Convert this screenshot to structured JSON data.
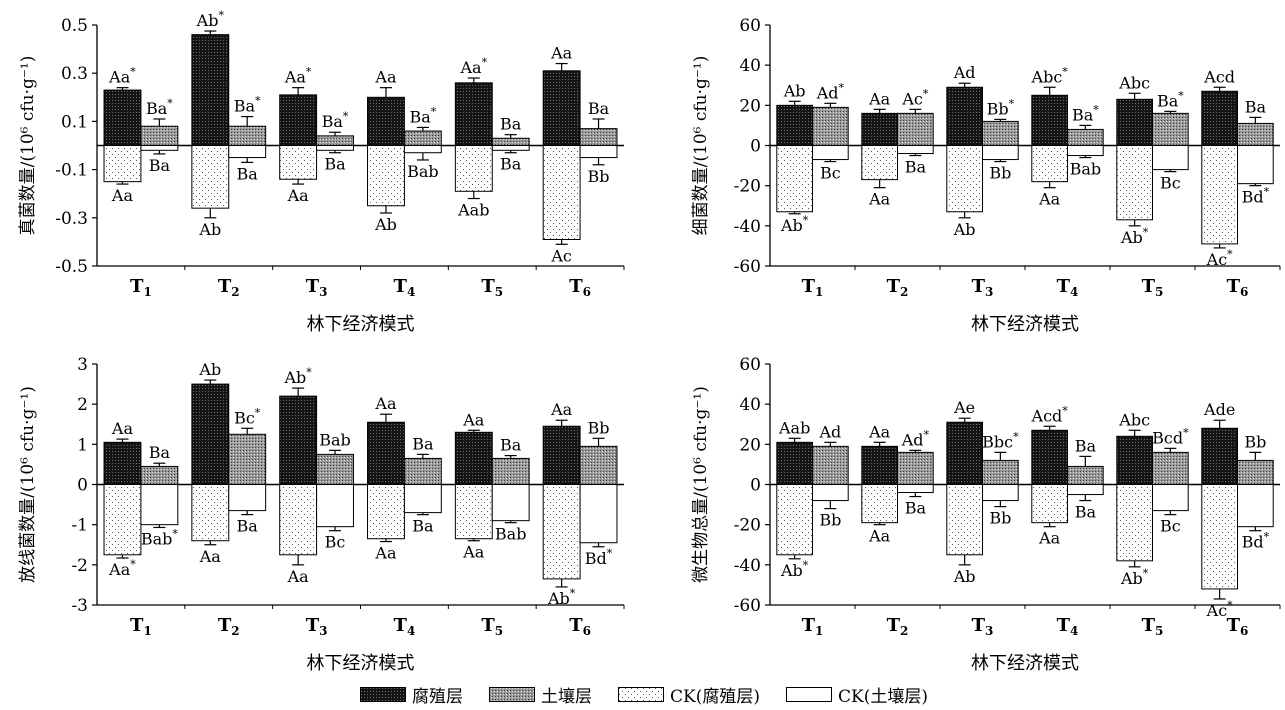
{
  "legend": {
    "items": [
      {
        "label": "腐殖层",
        "pattern": "humus"
      },
      {
        "label": "土壤层",
        "pattern": "soil"
      },
      {
        "label": "CK(腐殖层)",
        "pattern": "ckhumus"
      },
      {
        "label": "CK(土壤层)",
        "pattern": "cksoil"
      }
    ]
  },
  "colors": {
    "humus_fill": "#1a1a1a",
    "soil_fill": "#8c8c8c",
    "ck_fill": "#ffffff",
    "axis": "#000000"
  },
  "chart_data": [
    {
      "type": "bar",
      "ylabel": "真菌数量/(10⁶ cfu·g⁻¹)",
      "xlabel": "林下经济模式",
      "categories": [
        "T1",
        "T2",
        "T3",
        "T4",
        "T5",
        "T6"
      ],
      "ylim": [
        -0.5,
        0.5
      ],
      "yticks": [
        -0.5,
        -0.3,
        -0.1,
        0.1,
        0.3,
        0.5
      ],
      "series": [
        {
          "name": "腐殖层",
          "values": [
            0.23,
            0.46,
            0.21,
            0.2,
            0.26,
            0.31
          ],
          "errors": [
            0.01,
            0.015,
            0.03,
            0.04,
            0.02,
            0.03
          ],
          "labels": [
            "Aa*",
            "Ab*",
            "Aa*",
            "Aa",
            "Aa*",
            "Aa"
          ]
        },
        {
          "name": "土壤层",
          "values": [
            0.08,
            0.08,
            0.04,
            0.06,
            0.03,
            0.07
          ],
          "errors": [
            0.03,
            0.04,
            0.015,
            0.015,
            0.015,
            0.04
          ],
          "labels": [
            "Ba*",
            "Ba*",
            "Ba*",
            "Ba*",
            "Ba",
            "Ba"
          ]
        },
        {
          "name": "CK(腐殖层)",
          "values": [
            -0.15,
            -0.26,
            -0.14,
            -0.25,
            -0.19,
            -0.39
          ],
          "errors": [
            0.01,
            0.04,
            0.02,
            0.03,
            0.03,
            0.02
          ],
          "labels": [
            "Aa",
            "Ab",
            "Aa",
            "Ab",
            "Aab",
            "Ac"
          ]
        },
        {
          "name": "CK(土壤层)",
          "values": [
            -0.02,
            -0.05,
            -0.02,
            -0.03,
            -0.02,
            -0.05
          ],
          "errors": [
            0.015,
            0.02,
            0.01,
            0.03,
            0.01,
            0.03
          ],
          "labels": [
            "Ba",
            "Ba",
            "Ba",
            "Bab",
            "Ba",
            "Bb"
          ]
        }
      ]
    },
    {
      "type": "bar",
      "ylabel": "细菌数量/(10⁶ cfu·g⁻¹)",
      "xlabel": "林下经济模式",
      "categories": [
        "T1",
        "T2",
        "T3",
        "T4",
        "T5",
        "T6"
      ],
      "ylim": [
        -60,
        60
      ],
      "yticks": [
        -60,
        -40,
        -20,
        0,
        20,
        40,
        60
      ],
      "series": [
        {
          "name": "腐殖层",
          "values": [
            20,
            16,
            29,
            25,
            23,
            27
          ],
          "errors": [
            2,
            2,
            2,
            4,
            3,
            2
          ],
          "labels": [
            "Ab",
            "Aa",
            "Ad",
            "Abc*",
            "Abc",
            "Acd"
          ]
        },
        {
          "name": "土壤层",
          "values": [
            19,
            16,
            12,
            8,
            16,
            11
          ],
          "errors": [
            2,
            2,
            1,
            2,
            1,
            3
          ],
          "labels": [
            "Ad*",
            "Ac*",
            "Bb*",
            "Ba*",
            "Ba*",
            "Ba"
          ]
        },
        {
          "name": "CK(腐殖层)",
          "values": [
            -33,
            -17,
            -33,
            -18,
            -37,
            -49
          ],
          "errors": [
            1,
            4,
            3,
            3,
            3,
            2
          ],
          "labels": [
            "Ab*",
            "Aa",
            "Ab",
            "Aa",
            "Ab*",
            "Ac*"
          ]
        },
        {
          "name": "CK(土壤层)",
          "values": [
            -7,
            -4,
            -7,
            -5,
            -12,
            -19
          ],
          "errors": [
            1,
            1,
            1,
            1,
            1,
            1
          ],
          "labels": [
            "Bc",
            "Ba",
            "Bb",
            "Bab",
            "Bc",
            "Bd*"
          ]
        }
      ]
    },
    {
      "type": "bar",
      "ylabel": "放线菌数量/(10⁶ cfu·g⁻¹)",
      "xlabel": "林下经济模式",
      "categories": [
        "T1",
        "T2",
        "T3",
        "T4",
        "T5",
        "T6"
      ],
      "ylim": [
        -3,
        3
      ],
      "yticks": [
        -3,
        -2,
        -1,
        0,
        1,
        2,
        3
      ],
      "series": [
        {
          "name": "腐殖层",
          "values": [
            1.05,
            2.5,
            2.2,
            1.55,
            1.3,
            1.45
          ],
          "errors": [
            0.08,
            0.1,
            0.2,
            0.2,
            0.05,
            0.15
          ],
          "labels": [
            "Aa",
            "Ab",
            "Ab*",
            "Aa",
            "Aa",
            "Aa"
          ]
        },
        {
          "name": "土壤层",
          "values": [
            0.45,
            1.25,
            0.75,
            0.65,
            0.65,
            0.95
          ],
          "errors": [
            0.08,
            0.15,
            0.1,
            0.1,
            0.07,
            0.2
          ],
          "labels": [
            "Ba",
            "Bc*",
            "Bab",
            "Ba",
            "Ba",
            "Bb"
          ]
        },
        {
          "name": "CK(腐殖层)",
          "values": [
            -1.75,
            -1.4,
            -1.75,
            -1.35,
            -1.35,
            -2.35
          ],
          "errors": [
            0.08,
            0.1,
            0.25,
            0.07,
            0.05,
            0.2
          ],
          "labels": [
            "Aa*",
            "Aa",
            "Aa",
            "Aa",
            "Aa",
            "Ab*"
          ]
        },
        {
          "name": "CK(土壤层)",
          "values": [
            -1.0,
            -0.65,
            -1.05,
            -0.7,
            -0.9,
            -1.45
          ],
          "errors": [
            0.07,
            0.1,
            0.1,
            0.05,
            0.05,
            0.1
          ],
          "labels": [
            "Bab*",
            "Ba",
            "Bc",
            "Ba",
            "Bab",
            "Bd*"
          ]
        }
      ]
    },
    {
      "type": "bar",
      "ylabel": "微生物总量/(10⁶ cfu·g⁻¹)",
      "xlabel": "林下经济模式",
      "categories": [
        "T1",
        "T2",
        "T3",
        "T4",
        "T5",
        "T6"
      ],
      "ylim": [
        -60,
        60
      ],
      "yticks": [
        -60,
        -40,
        -20,
        0,
        20,
        40,
        60
      ],
      "series": [
        {
          "name": "腐殖层",
          "values": [
            21,
            19,
            31,
            27,
            24,
            28
          ],
          "errors": [
            2,
            2,
            2,
            2,
            3,
            4
          ],
          "labels": [
            "Aab",
            "Aa",
            "Ae",
            "Acd*",
            "Abc",
            "Ade"
          ]
        },
        {
          "name": "土壤层",
          "values": [
            19,
            16,
            12,
            9,
            16,
            12
          ],
          "errors": [
            2,
            1,
            4,
            5,
            2,
            4
          ],
          "labels": [
            "Ad",
            "Ad*",
            "Bbc*",
            "Ba",
            "Bcd*",
            "Bb"
          ]
        },
        {
          "name": "CK(腐殖层)",
          "values": [
            -35,
            -19,
            -35,
            -19,
            -38,
            -52
          ],
          "errors": [
            2,
            1,
            5,
            2,
            3,
            5
          ],
          "labels": [
            "Ab*",
            "Aa",
            "Ab",
            "Aa",
            "Ab*",
            "Ac*"
          ]
        },
        {
          "name": "CK(土壤层)",
          "values": [
            -8,
            -4,
            -8,
            -5,
            -13,
            -21
          ],
          "errors": [
            4,
            2,
            3,
            3,
            2,
            2
          ],
          "labels": [
            "Bb",
            "Ba",
            "Bb",
            "Ba",
            "Bc",
            "Bd*"
          ]
        }
      ]
    }
  ]
}
